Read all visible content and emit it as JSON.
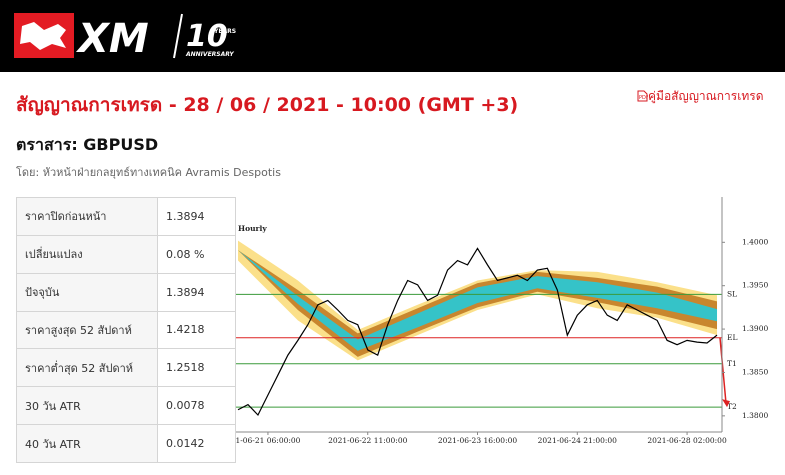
{
  "header": {
    "logo": "XM",
    "anniversary_number": "10",
    "anniversary_years": "YEARS",
    "anniversary_text": "ANNIVERSARY"
  },
  "title": "สัญญาณการเทรด - 28 / 06 / 2021 - 10:00 (GMT +3)",
  "guide_link": "คู่มือสัญญาณการเทรด",
  "instrument": "ตราสาร: GBPUSD",
  "author": "โดย: หัวหน้าฝ่ายกลยุทธ์ทางเทคนิค Avramis Despotis",
  "table": {
    "rows": [
      [
        "ราคาปิดก่อนหน้า",
        "1.3894"
      ],
      [
        "เปลี่ยนแปลง",
        "0.08 %"
      ],
      [
        "ปัจจุบัน",
        "1.3894"
      ],
      [
        "ราคาสูงสุด 52 สัปดาห์",
        "1.4218"
      ],
      [
        "ราคาต่ำสุด 52 สัปดาห์",
        "1.2518"
      ],
      [
        "30 วัน ATR",
        "0.0078"
      ],
      [
        "40 วัน ATR",
        "0.0142"
      ]
    ]
  },
  "chart_data": {
    "type": "line",
    "title": "Hourly",
    "series": [
      {
        "name": "GBPUSD",
        "color": "#000000",
        "values": [
          1.3807,
          1.3813,
          1.3801,
          1.3824,
          1.3847,
          1.387,
          1.3887,
          1.3905,
          1.3928,
          1.3933,
          1.3922,
          1.391,
          1.3905,
          1.3876,
          1.387,
          1.3905,
          1.3933,
          1.3956,
          1.3951,
          1.3933,
          1.3939,
          1.3968,
          1.3979,
          1.3974,
          1.3993,
          1.3974,
          1.3956,
          1.3959,
          1.3962,
          1.3956,
          1.3968,
          1.397,
          1.3945,
          1.3893,
          1.3916,
          1.3928,
          1.3933,
          1.3916,
          1.391,
          1.3928,
          1.3922,
          1.3916,
          1.391,
          1.3887,
          1.3882,
          1.3887,
          1.3885,
          1.3884,
          1.3893
        ]
      }
    ],
    "xlim": [
      -0.2,
      48.5
    ],
    "xticks": [
      {
        "value": 3,
        "label": "1-06-21 06:00:00"
      },
      {
        "value": 13,
        "label": "2021-06-22 11:00:00"
      },
      {
        "value": 24,
        "label": "2021-06-23 16:00:00"
      },
      {
        "value": 34,
        "label": "2021-06-24 21:00:00"
      },
      {
        "value": 45,
        "label": "2021-06-28 02:00:00"
      }
    ],
    "ylim": [
      1.3786,
      1.4043
    ],
    "yticks": [
      {
        "value": 1.4,
        "label": "1.4000"
      },
      {
        "value": 1.395,
        "label": "1.3950"
      },
      {
        "value": 1.39,
        "label": "1.3900"
      },
      {
        "value": 1.385,
        "label": "1.3850"
      },
      {
        "value": 1.38,
        "label": "1.3800"
      }
    ],
    "levels": [
      {
        "label": "SL",
        "value": 1.394,
        "color": "#3a9a3a"
      },
      {
        "label": "EL",
        "value": 1.389,
        "color": "#d22"
      },
      {
        "label": "T1",
        "value": 1.386,
        "color": "#3a9a3a"
      },
      {
        "label": "T2",
        "value": 1.381,
        "color": "#3a9a3a"
      }
    ],
    "bands": {
      "x": [
        0,
        6,
        12,
        18,
        24,
        30,
        36,
        42,
        48
      ],
      "outer": {
        "color": "#fbe08a",
        "upper": [
          1.4002,
          1.3956,
          1.3899,
          1.3928,
          1.3956,
          1.3968,
          1.3966,
          1.3954,
          1.3939
        ],
        "lower": [
          1.3979,
          1.391,
          1.3864,
          1.3893,
          1.3922,
          1.394,
          1.3924,
          1.3913,
          1.3893
        ]
      },
      "middle": {
        "color": "#c8862e",
        "upper": [
          1.3991,
          1.3945,
          1.3895,
          1.3924,
          1.3953,
          1.3966,
          1.3959,
          1.3949,
          1.3932
        ],
        "lower": [
          1.3991,
          1.3922,
          1.3868,
          1.3897,
          1.3925,
          1.3943,
          1.3931,
          1.3917,
          1.39
        ]
      },
      "inner": {
        "color": "#35c3c8",
        "upper": [
          1.3991,
          1.3938,
          1.3888,
          1.3918,
          1.3948,
          1.3961,
          1.3954,
          1.3942,
          1.3923
        ],
        "lower": [
          1.3991,
          1.3929,
          1.3875,
          1.3902,
          1.393,
          1.3947,
          1.3936,
          1.3924,
          1.3909
        ]
      }
    }
  }
}
